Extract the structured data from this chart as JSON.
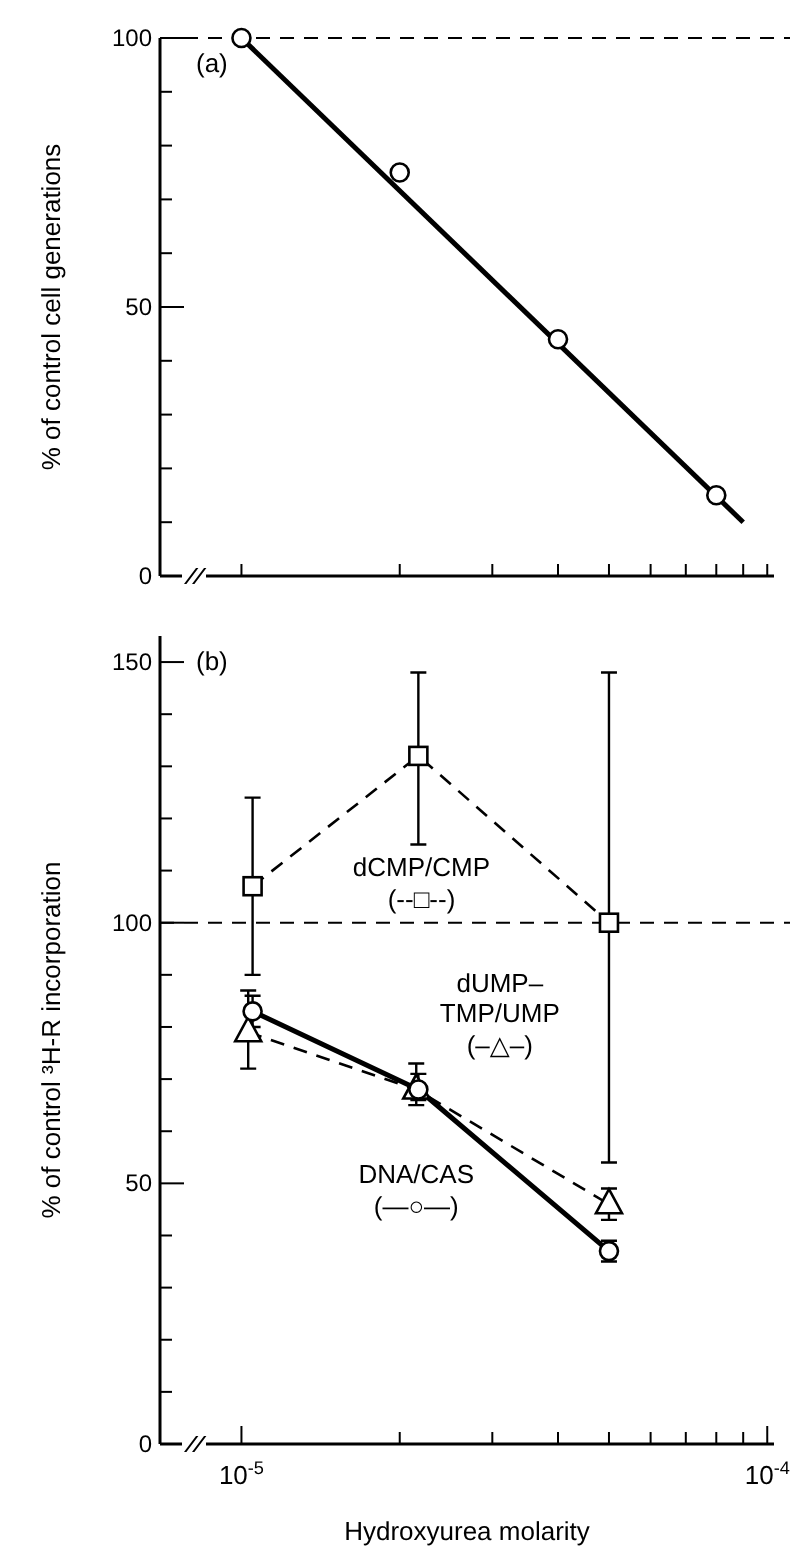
{
  "chart_data": [
    {
      "type": "scatter",
      "ylabel": "% of control cell generations",
      "annotations": [
        "(a)"
      ],
      "xlim": [
        7e-06,
        0.000103
      ],
      "log": "x",
      "tick_labels": "y",
      "grid": false,
      "legend": false,
      "xticks": [
        {
          "value": 1e-05,
          "label": null
        },
        {
          "value": 2e-05,
          "label": null
        },
        {
          "value": 3e-05,
          "label": null
        },
        {
          "value": 4e-05,
          "label": null
        },
        {
          "value": 5e-05,
          "label": null
        },
        {
          "value": 6e-05,
          "label": null
        },
        {
          "value": 7e-05,
          "label": null
        },
        {
          "value": 8e-05,
          "label": null
        },
        {
          "value": 9e-05,
          "label": null
        },
        {
          "value": 0.0001,
          "label": null
        }
      ],
      "ylim": [
        0,
        100
      ],
      "yticks": [
        0,
        {
          "value": 10,
          "label": null
        },
        {
          "value": 20,
          "label": null
        },
        {
          "value": 30,
          "label": null
        },
        {
          "value": 40,
          "label": null
        },
        50,
        {
          "value": 60,
          "label": null
        },
        {
          "value": 70,
          "label": null
        },
        {
          "value": 80,
          "label": null
        },
        {
          "value": 90,
          "label": null
        },
        100
      ],
      "ref_lines": [
        {
          "axis": "y",
          "value": 100,
          "color": "#000000",
          "line_style": "dashed"
        }
      ],
      "series": [
        {
          "type": "scatter",
          "color": "#000000",
          "marker": "circle",
          "x": [
            1e-05,
            2e-05,
            4e-05,
            8e-05
          ],
          "values": [
            100,
            75,
            44,
            15
          ]
        },
        {
          "type": "line",
          "color": "#000000",
          "marker": "none",
          "line_style": "solid",
          "x": [
            1e-05,
            9e-05
          ],
          "values": [
            100,
            10
          ]
        }
      ]
    },
    {
      "type": "line",
      "xlabel": "Hydroxyurea  molarity",
      "ylabel": "% of control ³H-R incorporation",
      "annotations": [
        "(b)",
        "(--□--)",
        "(–△–)",
        "(—○—)"
      ],
      "xlim": [
        7e-06,
        0.000103
      ],
      "log": "x",
      "grid": false,
      "legend": false,
      "xticks": [
        {
          "value": 1e-05,
          "label": "10$^{-5}$"
        },
        {
          "value": 2e-05,
          "label": null
        },
        {
          "value": 3e-05,
          "label": null
        },
        {
          "value": 4e-05,
          "label": null
        },
        {
          "value": 5e-05,
          "label": null
        },
        {
          "value": 6e-05,
          "label": null
        },
        {
          "value": 7e-05,
          "label": null
        },
        {
          "value": 8e-05,
          "label": null
        },
        {
          "value": 9e-05,
          "label": null
        },
        {
          "value": 0.0001,
          "label": "10$^{-4}$"
        }
      ],
      "ylim": [
        0,
        155
      ],
      "yticks": [
        0,
        {
          "value": 10,
          "label": null
        },
        {
          "value": 20,
          "label": null
        },
        {
          "value": 30,
          "label": null
        },
        {
          "value": 40,
          "label": null
        },
        50,
        {
          "value": 60,
          "label": null
        },
        {
          "value": 70,
          "label": null
        },
        {
          "value": 80,
          "label": null
        },
        {
          "value": 90,
          "label": null
        },
        100,
        {
          "value": 110,
          "label": null
        },
        {
          "value": 120,
          "label": null
        },
        {
          "value": 130,
          "label": null
        },
        {
          "value": 140,
          "label": null
        },
        150
      ],
      "ref_lines": [
        {
          "axis": "y",
          "value": 100,
          "color": "#000000",
          "line_style": "dashed"
        }
      ],
      "series": [
        {
          "name": "dCMP/CMP",
          "color": "#000000",
          "marker": "square",
          "line_style": "dashed",
          "x": [
            1.05e-05,
            2.17e-05,
            5e-05
          ],
          "values": [
            107,
            132,
            100
          ],
          "errors": [
            [
              90,
              124
            ],
            [
              115,
              148
            ],
            [
              54,
              148
            ]
          ]
        },
        {
          "name": "dUMP–TMP/UMP",
          "color": "#000000",
          "marker": "triangle",
          "line_style": "dashed",
          "x": [
            1.03e-05,
            2.15e-05,
            5e-05
          ],
          "values": [
            79,
            68,
            46
          ],
          "errors": [
            [
              72,
              87
            ],
            [
              65,
              73
            ],
            [
              43,
              49
            ]
          ]
        },
        {
          "name": "DNA/CAS",
          "color": "#000000",
          "marker": "circle",
          "line_style": "solid",
          "x": [
            1.05e-05,
            2.17e-05,
            5e-05
          ],
          "values": [
            83,
            68,
            37
          ],
          "errors": [
            [
              80,
              86
            ],
            [
              66,
              71
            ],
            [
              35,
              39
            ]
          ]
        }
      ]
    }
  ]
}
